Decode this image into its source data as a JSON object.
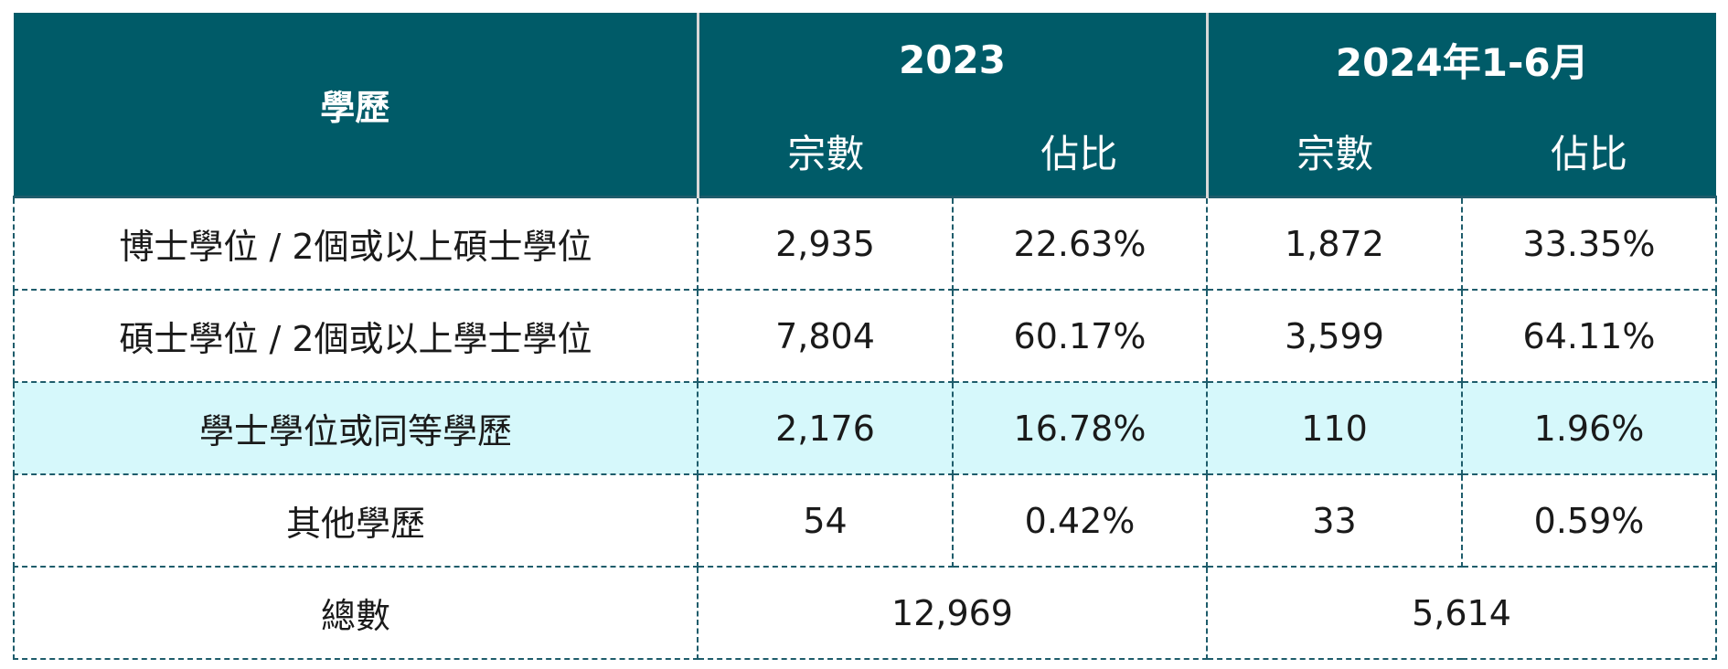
{
  "header": {
    "education_label": "學歷",
    "period_2023": "2023",
    "period_2024": "2024年1-6月",
    "count_label": "宗數",
    "share_label": "佔比"
  },
  "rows": [
    {
      "label": "博士學位 / 2個或以上碩士學位",
      "count_2023": "2,935",
      "share_2023": "22.63%",
      "count_2024": "1,872",
      "share_2024": "33.35%"
    },
    {
      "label": "碩士學位 / 2個或以上學士學位",
      "count_2023": "7,804",
      "share_2023": "60.17%",
      "count_2024": "3,599",
      "share_2024": "64.11%"
    },
    {
      "label": "學士學位或同等學歷",
      "count_2023": "2,176",
      "share_2023": "16.78%",
      "count_2024": "110",
      "share_2024": "1.96%"
    },
    {
      "label": "其他學歷",
      "count_2023": "54",
      "share_2023": "0.42%",
      "count_2024": "33",
      "share_2024": "0.59%"
    }
  ],
  "total": {
    "label": "總數",
    "value_2023": "12,969",
    "value_2024": "5,614"
  },
  "colors": {
    "header_bg": "#005b68",
    "highlight_row_bg": "#d6f8fb",
    "border": "#1e5c6b"
  }
}
